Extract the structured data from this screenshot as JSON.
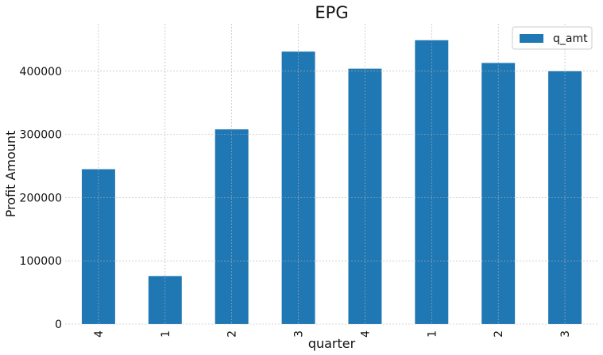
{
  "chart_data": {
    "type": "bar",
    "title": "EPG",
    "xlabel": "quarter",
    "ylabel": "Profit Amount",
    "categories": [
      "4",
      "1",
      "2",
      "3",
      "4",
      "1",
      "2",
      "3"
    ],
    "series": [
      {
        "name": "q_amt",
        "values": [
          245000,
          76000,
          308000,
          431000,
          404000,
          449000,
          413000,
          400000
        ]
      }
    ],
    "ylim": [
      0,
      475000
    ],
    "yticks": [
      0,
      100000,
      200000,
      300000,
      400000
    ],
    "ytick_labels": [
      "0",
      "100000",
      "200000",
      "300000",
      "400000"
    ],
    "grid": true,
    "legend_position": "top-right",
    "colors": {
      "bar": "#1f77b4"
    }
  }
}
